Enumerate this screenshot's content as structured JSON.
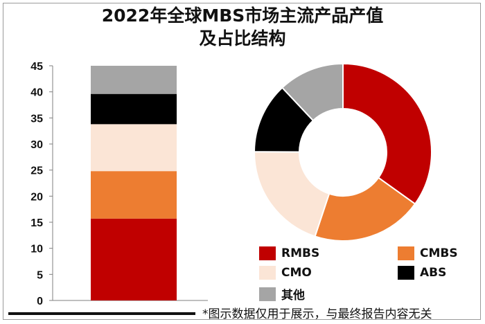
{
  "chart_data": [
    {
      "type": "bar",
      "stacked": true,
      "categories": [
        ""
      ],
      "series": [
        {
          "name": "RMBS",
          "values": [
            15.7
          ],
          "color": "#c00000"
        },
        {
          "name": "CMBS",
          "values": [
            9.1
          ],
          "color": "#ed7d31"
        },
        {
          "name": "CMO",
          "values": [
            9.0
          ],
          "color": "#fbe5d6"
        },
        {
          "name": "ABS",
          "values": [
            5.8
          ],
          "color": "#000000"
        },
        {
          "name": "其他",
          "values": [
            5.4
          ],
          "color": "#a5a5a5"
        }
      ],
      "ylim": [
        0,
        45
      ],
      "yticks": [
        0,
        5,
        10,
        15,
        20,
        25,
        30,
        35,
        40,
        45
      ],
      "grid": false
    },
    {
      "type": "pie",
      "donut": true,
      "labels": [
        "RMBS",
        "CMBS",
        "CMO",
        "ABS",
        "其他"
      ],
      "values": [
        15.7,
        9.1,
        9.0,
        5.8,
        5.4
      ],
      "colors": [
        "#c00000",
        "#ed7d31",
        "#fbe5d6",
        "#000000",
        "#a5a5a5"
      ],
      "legend": "bottom"
    }
  ],
  "title_line1": "2022年全球MBS市场主流产品产值",
  "title_line2": "及占比结构",
  "footnote": "*图示数据仅用于展示，与最终报告内容无关"
}
